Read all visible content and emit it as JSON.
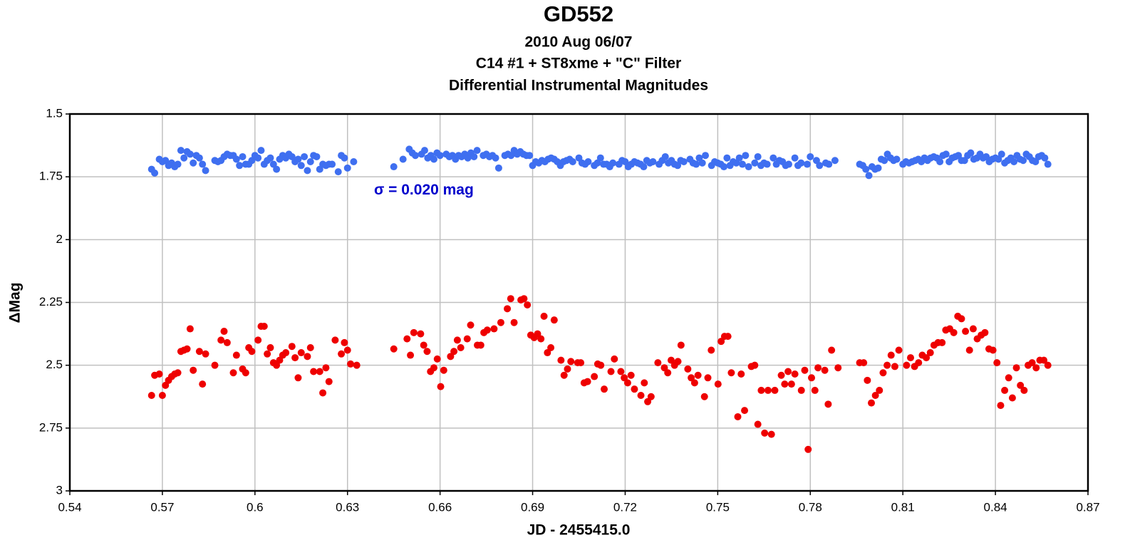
{
  "chart_data": {
    "type": "scatter",
    "title": "GD552",
    "subtitle": [
      "2010 Aug 06/07",
      "C14 #1 + ST8xme + \"C\" Filter",
      "Differential Instrumental Magnitudes"
    ],
    "x_label": "JD - 2455415.0",
    "y_label": "ΔMag",
    "xlim": [
      0.54,
      0.87
    ],
    "xticks": [
      0.54,
      0.57,
      0.6,
      0.63,
      0.66,
      0.69,
      0.72,
      0.75,
      0.78,
      0.81,
      0.84,
      0.87
    ],
    "ylim": [
      1.5,
      3
    ],
    "yticks": [
      1.5,
      1.75,
      2,
      2.25,
      2.5,
      2.75,
      3
    ],
    "y_inverted": true,
    "grid": true,
    "annotations": [
      {
        "text": "σ = 0.020 mag",
        "x": 0.6386,
        "y": 1.805,
        "color": "#0000cc"
      }
    ],
    "series": [
      {
        "color": "#3f6ff0",
        "x": [
          0.5665,
          0.5675,
          0.569,
          0.57,
          0.571,
          0.572,
          0.573,
          0.574,
          0.575,
          0.576,
          0.577,
          0.578,
          0.579,
          0.58,
          0.581,
          0.582,
          0.583,
          0.584,
          0.587,
          0.588,
          0.589,
          0.59,
          0.591,
          0.592,
          0.593,
          0.594,
          0.595,
          0.596,
          0.597,
          0.598,
          0.599,
          0.6,
          0.601,
          0.602,
          0.603,
          0.604,
          0.605,
          0.606,
          0.607,
          0.608,
          0.609,
          0.61,
          0.611,
          0.612,
          0.613,
          0.614,
          0.615,
          0.616,
          0.617,
          0.618,
          0.619,
          0.62,
          0.621,
          0.622,
          0.623,
          0.624,
          0.625,
          0.627,
          0.628,
          0.629,
          0.63,
          0.632,
          0.645,
          0.648,
          0.65,
          0.651,
          0.652,
          0.654,
          0.655,
          0.656,
          0.657,
          0.658,
          0.659,
          0.66,
          0.662,
          0.663,
          0.664,
          0.665,
          0.666,
          0.667,
          0.668,
          0.669,
          0.67,
          0.671,
          0.672,
          0.674,
          0.675,
          0.676,
          0.677,
          0.678,
          0.679,
          0.681,
          0.682,
          0.683,
          0.684,
          0.685,
          0.686,
          0.687,
          0.688,
          0.689,
          0.69,
          0.691,
          0.692,
          0.693,
          0.694,
          0.695,
          0.696,
          0.697,
          0.698,
          0.699,
          0.7,
          0.701,
          0.702,
          0.703,
          0.705,
          0.706,
          0.707,
          0.708,
          0.71,
          0.711,
          0.712,
          0.713,
          0.714,
          0.715,
          0.716,
          0.718,
          0.719,
          0.72,
          0.721,
          0.722,
          0.723,
          0.724,
          0.725,
          0.726,
          0.727,
          0.728,
          0.729,
          0.731,
          0.732,
          0.733,
          0.734,
          0.735,
          0.736,
          0.737,
          0.738,
          0.739,
          0.741,
          0.742,
          0.743,
          0.744,
          0.745,
          0.746,
          0.748,
          0.749,
          0.75,
          0.751,
          0.752,
          0.753,
          0.754,
          0.755,
          0.756,
          0.757,
          0.758,
          0.759,
          0.76,
          0.762,
          0.763,
          0.764,
          0.765,
          0.766,
          0.768,
          0.769,
          0.77,
          0.771,
          0.772,
          0.773,
          0.775,
          0.776,
          0.777,
          0.779,
          0.78,
          0.782,
          0.783,
          0.785,
          0.786,
          0.788,
          0.796,
          0.797,
          0.798,
          0.799,
          0.8,
          0.801,
          0.802,
          0.803,
          0.804,
          0.805,
          0.806,
          0.807,
          0.808,
          0.81,
          0.811,
          0.812,
          0.813,
          0.814,
          0.815,
          0.816,
          0.817,
          0.818,
          0.819,
          0.82,
          0.821,
          0.822,
          0.823,
          0.824,
          0.825,
          0.826,
          0.827,
          0.828,
          0.829,
          0.83,
          0.831,
          0.832,
          0.833,
          0.834,
          0.835,
          0.836,
          0.837,
          0.838,
          0.839,
          0.84,
          0.841,
          0.842,
          0.843,
          0.844,
          0.845,
          0.846,
          0.847,
          0.848,
          0.849,
          0.85,
          0.851,
          0.852,
          0.853,
          0.854,
          0.855,
          0.856,
          0.857
        ],
        "values": [
          1.72,
          1.735,
          1.68,
          1.69,
          1.685,
          1.705,
          1.695,
          1.71,
          1.7,
          1.645,
          1.675,
          1.65,
          1.66,
          1.695,
          1.665,
          1.675,
          1.7,
          1.725,
          1.685,
          1.69,
          1.685,
          1.67,
          1.66,
          1.665,
          1.665,
          1.68,
          1.705,
          1.67,
          1.7,
          1.7,
          1.685,
          1.665,
          1.675,
          1.645,
          1.7,
          1.685,
          1.675,
          1.7,
          1.72,
          1.68,
          1.665,
          1.675,
          1.66,
          1.67,
          1.69,
          1.68,
          1.705,
          1.67,
          1.725,
          1.69,
          1.665,
          1.67,
          1.72,
          1.7,
          1.705,
          1.7,
          1.7,
          1.73,
          1.665,
          1.675,
          1.715,
          1.69,
          1.71,
          1.68,
          1.64,
          1.655,
          1.665,
          1.66,
          1.645,
          1.675,
          1.665,
          1.68,
          1.655,
          1.665,
          1.66,
          1.67,
          1.665,
          1.68,
          1.665,
          1.67,
          1.66,
          1.675,
          1.655,
          1.67,
          1.645,
          1.665,
          1.66,
          1.67,
          1.665,
          1.675,
          1.715,
          1.665,
          1.66,
          1.665,
          1.645,
          1.66,
          1.65,
          1.66,
          1.665,
          1.665,
          1.705,
          1.69,
          1.695,
          1.685,
          1.69,
          1.68,
          1.675,
          1.68,
          1.69,
          1.705,
          1.69,
          1.685,
          1.68,
          1.69,
          1.675,
          1.695,
          1.7,
          1.69,
          1.705,
          1.695,
          1.675,
          1.7,
          1.7,
          1.71,
          1.695,
          1.7,
          1.685,
          1.69,
          1.71,
          1.7,
          1.69,
          1.695,
          1.7,
          1.71,
          1.685,
          1.695,
          1.69,
          1.7,
          1.685,
          1.67,
          1.695,
          1.685,
          1.7,
          1.705,
          1.685,
          1.69,
          1.68,
          1.695,
          1.7,
          1.675,
          1.695,
          1.665,
          1.705,
          1.69,
          1.695,
          1.7,
          1.71,
          1.675,
          1.705,
          1.69,
          1.695,
          1.675,
          1.7,
          1.665,
          1.71,
          1.695,
          1.67,
          1.705,
          1.695,
          1.7,
          1.675,
          1.7,
          1.685,
          1.69,
          1.705,
          1.7,
          1.675,
          1.705,
          1.695,
          1.7,
          1.67,
          1.685,
          1.705,
          1.695,
          1.7,
          1.685,
          1.7,
          1.705,
          1.72,
          1.745,
          1.71,
          1.72,
          1.715,
          1.68,
          1.685,
          1.66,
          1.675,
          1.685,
          1.68,
          1.7,
          1.69,
          1.695,
          1.69,
          1.685,
          1.68,
          1.69,
          1.675,
          1.685,
          1.675,
          1.67,
          1.675,
          1.69,
          1.665,
          1.66,
          1.69,
          1.675,
          1.67,
          1.665,
          1.685,
          1.685,
          1.665,
          1.655,
          1.68,
          1.675,
          1.66,
          1.675,
          1.67,
          1.69,
          1.68,
          1.675,
          1.68,
          1.66,
          1.695,
          1.685,
          1.675,
          1.69,
          1.665,
          1.68,
          1.685,
          1.66,
          1.67,
          1.685,
          1.69,
          1.67,
          1.665,
          1.675,
          1.7
        ]
      },
      {
        "color": "#ee0000",
        "x": [
          0.5665,
          0.5675,
          0.569,
          0.57,
          0.571,
          0.572,
          0.573,
          0.574,
          0.575,
          0.576,
          0.577,
          0.578,
          0.579,
          0.58,
          0.582,
          0.583,
          0.584,
          0.587,
          0.589,
          0.59,
          0.591,
          0.593,
          0.594,
          0.596,
          0.597,
          0.598,
          0.599,
          0.601,
          0.602,
          0.603,
          0.604,
          0.605,
          0.606,
          0.607,
          0.608,
          0.609,
          0.61,
          0.612,
          0.613,
          0.614,
          0.615,
          0.617,
          0.618,
          0.619,
          0.621,
          0.622,
          0.623,
          0.624,
          0.626,
          0.628,
          0.629,
          0.63,
          0.631,
          0.633,
          0.645,
          0.6493,
          0.6504,
          0.6515,
          0.6537,
          0.6547,
          0.6558,
          0.6569,
          0.658,
          0.6591,
          0.6602,
          0.6612,
          0.6634,
          0.6645,
          0.6656,
          0.6667,
          0.6688,
          0.6699,
          0.6721,
          0.6732,
          0.6742,
          0.6753,
          0.6775,
          0.6797,
          0.6818,
          0.6829,
          0.684,
          0.6862,
          0.6872,
          0.6883,
          0.6894,
          0.6905,
          0.6916,
          0.6927,
          0.6937,
          0.6948,
          0.6959,
          0.697,
          0.6992,
          0.7002,
          0.7013,
          0.7024,
          0.7046,
          0.7056,
          0.7067,
          0.7078,
          0.71,
          0.7111,
          0.7121,
          0.7132,
          0.7154,
          0.7165,
          0.7186,
          0.7197,
          0.7208,
          0.7219,
          0.723,
          0.7251,
          0.7262,
          0.7273,
          0.7284,
          0.7306,
          0.7327,
          0.7338,
          0.7349,
          0.736,
          0.7371,
          0.7381,
          0.7403,
          0.7414,
          0.7425,
          0.7436,
          0.7457,
          0.7468,
          0.7479,
          0.7501,
          0.7511,
          0.7522,
          0.7533,
          0.7544,
          0.7565,
          0.7576,
          0.7587,
          0.7609,
          0.762,
          0.763,
          0.7641,
          0.7652,
          0.7663,
          0.7674,
          0.7685,
          0.7706,
          0.7717,
          0.7728,
          0.7739,
          0.775,
          0.7771,
          0.7782,
          0.7793,
          0.7804,
          0.7815,
          0.7825,
          0.7847,
          0.7858,
          0.7869,
          0.789,
          0.796,
          0.7973,
          0.7985,
          0.7998,
          0.8011,
          0.8024,
          0.8036,
          0.8049,
          0.8062,
          0.8074,
          0.8087,
          0.8112,
          0.8125,
          0.8138,
          0.8151,
          0.8163,
          0.8176,
          0.8189,
          0.8201,
          0.8214,
          0.8227,
          0.8239,
          0.8252,
          0.8265,
          0.8278,
          0.829,
          0.8303,
          0.8316,
          0.8328,
          0.8341,
          0.8354,
          0.8366,
          0.8379,
          0.8392,
          0.8405,
          0.8417,
          0.843,
          0.8443,
          0.8455,
          0.8468,
          0.8481,
          0.8493,
          0.8506,
          0.8519,
          0.8532,
          0.8544,
          0.8557,
          0.857
        ],
        "values": [
          2.62,
          2.54,
          2.535,
          2.62,
          2.58,
          2.56,
          2.545,
          2.535,
          2.53,
          2.445,
          2.44,
          2.435,
          2.355,
          2.52,
          2.445,
          2.575,
          2.455,
          2.5,
          2.4,
          2.365,
          2.41,
          2.53,
          2.46,
          2.515,
          2.53,
          2.43,
          2.445,
          2.4,
          2.345,
          2.345,
          2.455,
          2.43,
          2.49,
          2.5,
          2.48,
          2.46,
          2.45,
          2.425,
          2.47,
          2.55,
          2.45,
          2.465,
          2.43,
          2.525,
          2.525,
          2.61,
          2.51,
          2.565,
          2.4,
          2.455,
          2.41,
          2.44,
          2.495,
          2.5,
          2.435,
          2.395,
          2.46,
          2.37,
          2.375,
          2.42,
          2.445,
          2.525,
          2.51,
          2.475,
          2.585,
          2.52,
          2.465,
          2.445,
          2.4,
          2.43,
          2.395,
          2.34,
          2.42,
          2.42,
          2.37,
          2.36,
          2.355,
          2.33,
          2.275,
          2.235,
          2.33,
          2.24,
          2.235,
          2.26,
          2.38,
          2.39,
          2.375,
          2.395,
          2.305,
          2.45,
          2.43,
          2.32,
          2.48,
          2.54,
          2.515,
          2.485,
          2.49,
          2.49,
          2.57,
          2.565,
          2.545,
          2.495,
          2.5,
          2.595,
          2.525,
          2.475,
          2.525,
          2.55,
          2.57,
          2.54,
          2.595,
          2.62,
          2.57,
          2.645,
          2.625,
          2.49,
          2.51,
          2.53,
          2.48,
          2.5,
          2.485,
          2.42,
          2.515,
          2.55,
          2.57,
          2.54,
          2.625,
          2.55,
          2.44,
          2.575,
          2.405,
          2.385,
          2.385,
          2.53,
          2.705,
          2.535,
          2.68,
          2.505,
          2.5,
          2.735,
          2.6,
          2.77,
          2.6,
          2.775,
          2.6,
          2.54,
          2.575,
          2.525,
          2.575,
          2.535,
          2.6,
          2.52,
          2.835,
          2.55,
          2.6,
          2.51,
          2.52,
          2.655,
          2.44,
          2.51,
          2.49,
          2.49,
          2.56,
          2.65,
          2.62,
          2.6,
          2.53,
          2.5,
          2.46,
          2.505,
          2.44,
          2.5,
          2.47,
          2.505,
          2.49,
          2.46,
          2.47,
          2.45,
          2.42,
          2.41,
          2.41,
          2.36,
          2.355,
          2.37,
          2.305,
          2.315,
          2.365,
          2.44,
          2.355,
          2.395,
          2.38,
          2.37,
          2.435,
          2.44,
          2.49,
          2.66,
          2.6,
          2.55,
          2.63,
          2.51,
          2.58,
          2.6,
          2.5,
          2.49,
          2.51,
          2.48,
          2.48,
          2.5
        ]
      }
    ]
  }
}
